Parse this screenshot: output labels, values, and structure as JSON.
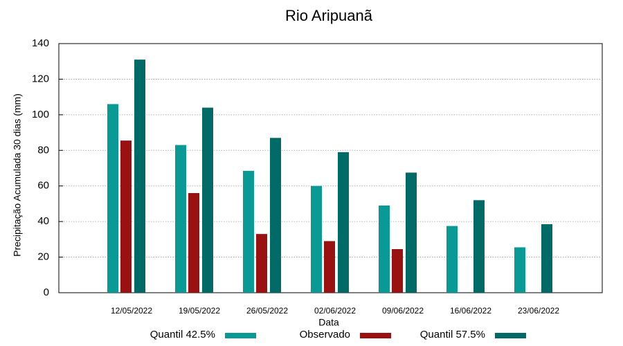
{
  "chart_data": {
    "type": "bar",
    "title": "Rio Aripuanã",
    "x_label": "Data",
    "y_label": "Precipitação Acumulada 30 dias (mm)",
    "categories": [
      "12/05/2022",
      "19/05/2022",
      "26/05/2022",
      "02/06/2022",
      "09/06/2022",
      "16/06/2022",
      "23/06/2022"
    ],
    "series": [
      {
        "name": "Quantil 42.5%",
        "color": "#0a9a96",
        "values": [
          106,
          83,
          68.5,
          60,
          49,
          37.5,
          25.5
        ]
      },
      {
        "name": "Observado",
        "color": "#991111",
        "values": [
          85.5,
          56,
          33,
          29,
          24.5,
          null,
          null
        ]
      },
      {
        "name": "Quantil 57.5%",
        "color": "#006a66",
        "values": [
          131,
          104,
          87,
          79,
          67.5,
          52,
          38.5
        ]
      }
    ],
    "ylim": [
      0,
      140
    ],
    "yticks": [
      0,
      20,
      40,
      60,
      80,
      100,
      120,
      140
    ],
    "grid": true
  }
}
